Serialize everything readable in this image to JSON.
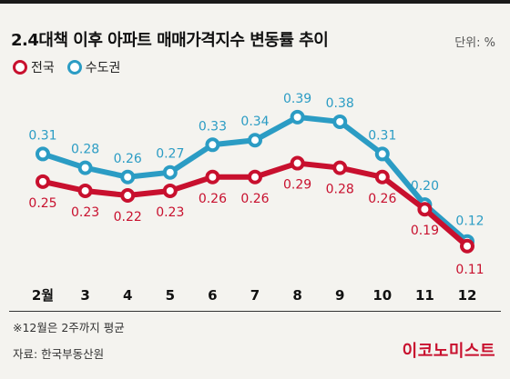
{
  "header": {
    "title": "2.4대책 이후 아파트 매매가격지수 변동률 추이",
    "unit": "단위: %"
  },
  "footer": {
    "note": "※12월은 2주까지 평균",
    "source": "자료: 한국부동산원",
    "brand": "이코노미스트"
  },
  "colors": {
    "nation": "#c8102e",
    "capital": "#2b9cc4"
  },
  "chart_data": {
    "type": "line",
    "categories": [
      "2월",
      "3",
      "4",
      "5",
      "6",
      "7",
      "8",
      "9",
      "10",
      "11",
      "12"
    ],
    "series": [
      {
        "name": "전국",
        "values": [
          "0.25",
          "0.23",
          "0.22",
          "0.23",
          "0.26",
          "0.26",
          "0.29",
          "0.28",
          "0.26",
          "0.19",
          "0.11"
        ]
      },
      {
        "name": "수도권",
        "values": [
          "0.31",
          "0.28",
          "0.26",
          "0.27",
          "0.33",
          "0.34",
          "0.39",
          "0.38",
          "0.31",
          "0.20",
          "0.12"
        ]
      }
    ],
    "grid": false
  }
}
